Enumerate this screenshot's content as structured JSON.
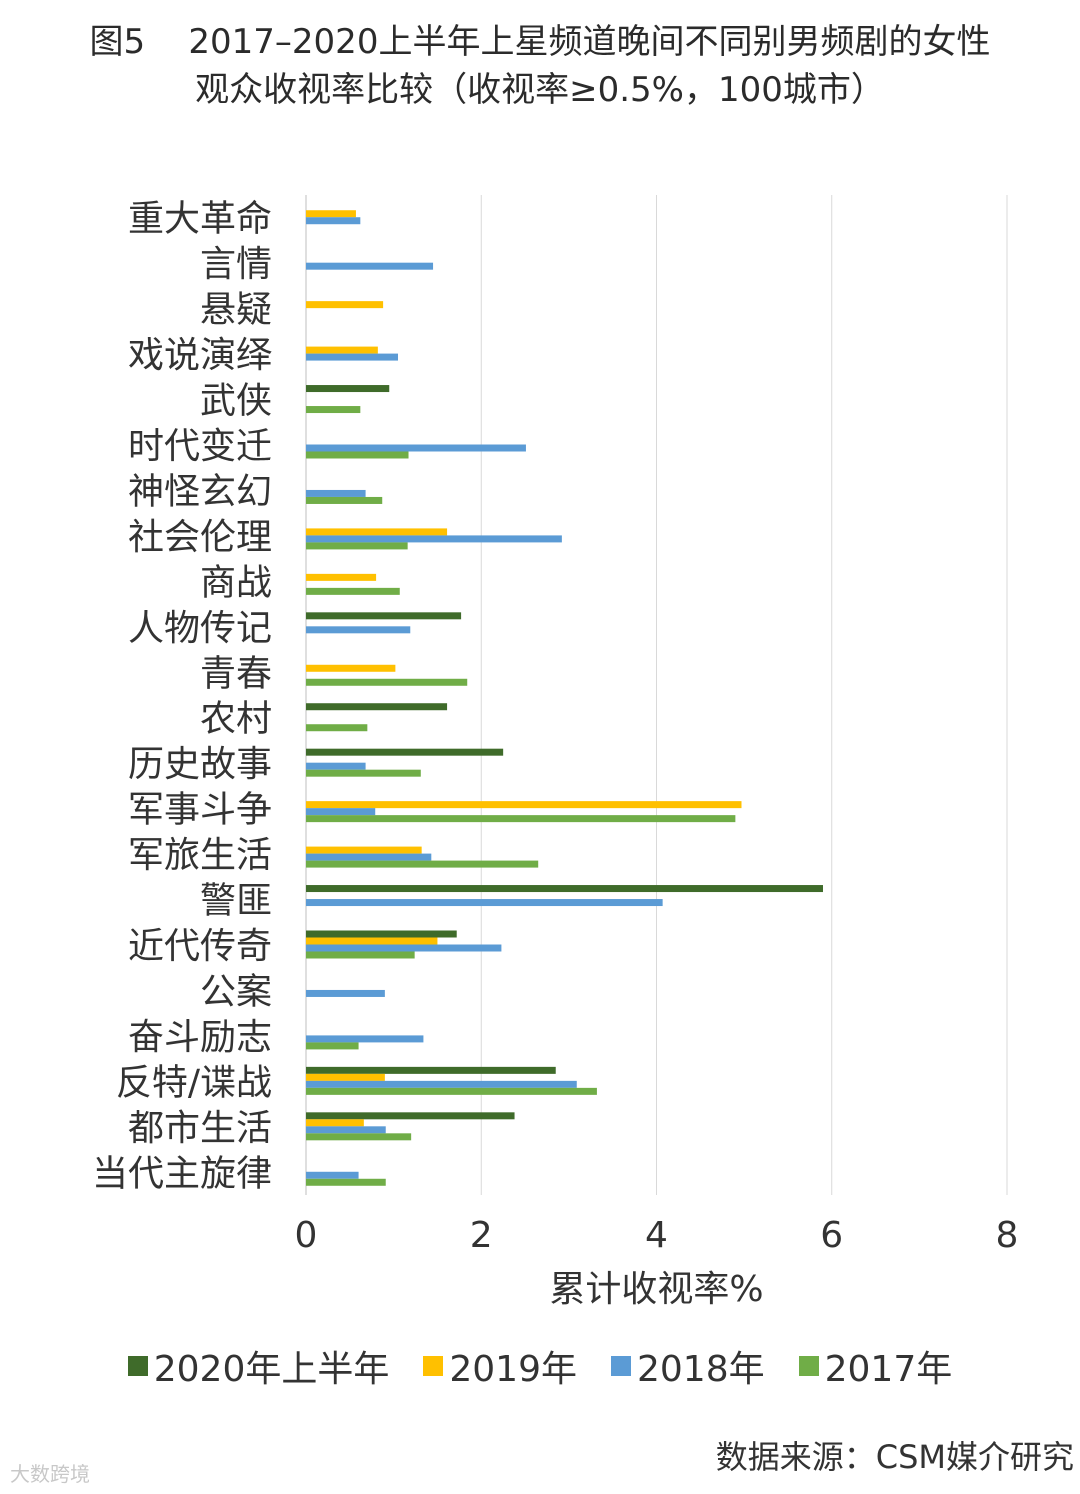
{
  "title": {
    "line1": "图5    2017–2020上半年上星频道晚间不同别男频剧的女性",
    "line2": "观众收视率比较（收视率≥0.5%，100城市）"
  },
  "chart_data": {
    "type": "bar",
    "orientation": "horizontal",
    "categories": [
      "重大革命",
      "言情",
      "悬疑",
      "戏说演绎",
      "武侠",
      "时代变迁",
      "神怪玄幻",
      "社会伦理",
      "商战",
      "人物传记",
      "青春",
      "农村",
      "历史故事",
      "军事斗争",
      "军旅生活",
      "警匪",
      "近代传奇",
      "公案",
      "奋斗励志",
      "反特/谍战",
      "都市生活",
      "当代主旋律"
    ],
    "series": [
      {
        "name": "2020年上半年",
        "color": "#3f6b2a",
        "values": [
          null,
          null,
          null,
          null,
          0.95,
          null,
          null,
          null,
          null,
          1.77,
          null,
          1.61,
          2.25,
          null,
          null,
          5.9,
          1.72,
          null,
          null,
          2.85,
          2.38,
          null
        ]
      },
      {
        "name": "2019年",
        "color": "#ffc000",
        "values": [
          0.57,
          null,
          0.88,
          0.82,
          null,
          null,
          null,
          1.61,
          0.8,
          null,
          1.02,
          null,
          null,
          4.97,
          1.32,
          null,
          1.5,
          null,
          null,
          0.9,
          0.66,
          null
        ]
      },
      {
        "name": "2018年",
        "color": "#5b9bd5",
        "values": [
          0.62,
          1.45,
          null,
          1.05,
          null,
          2.51,
          0.68,
          2.92,
          null,
          1.19,
          null,
          null,
          0.68,
          0.79,
          1.43,
          4.07,
          2.23,
          0.9,
          1.34,
          3.09,
          0.91,
          0.6
        ]
      },
      {
        "name": "2017年",
        "color": "#70ad47",
        "values": [
          null,
          null,
          null,
          null,
          0.62,
          1.17,
          0.87,
          1.16,
          1.07,
          null,
          1.84,
          0.7,
          1.31,
          4.9,
          2.65,
          null,
          1.24,
          null,
          0.6,
          3.32,
          1.2,
          0.91
        ]
      }
    ],
    "xlabel": "累计收视率%",
    "xlim": [
      0,
      8
    ],
    "xticks": [
      0,
      2,
      4,
      6,
      8
    ],
    "grid": "vertical",
    "legend_position": "bottom"
  },
  "source": "数据来源：CSM媒介研究",
  "watermark": "大数跨境"
}
